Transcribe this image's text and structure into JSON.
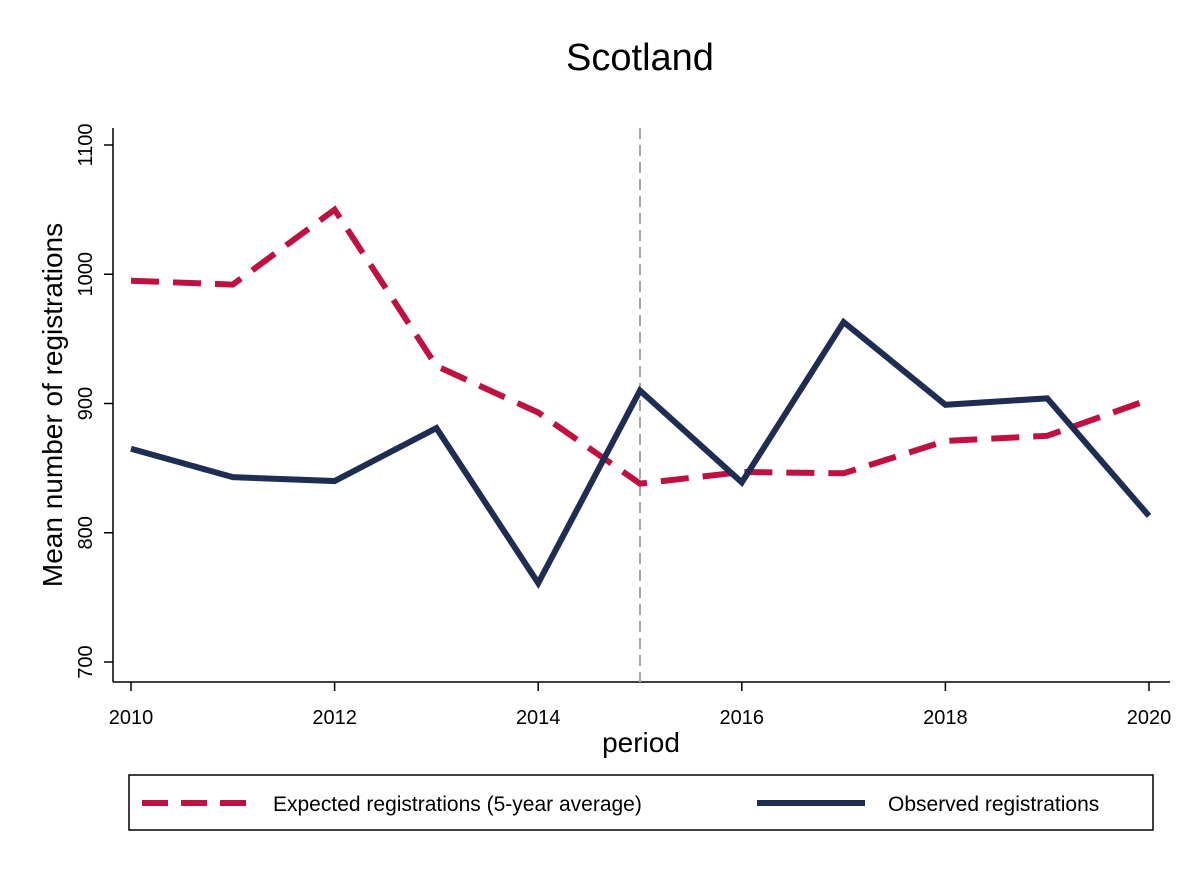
{
  "chart_data": {
    "type": "line",
    "title": "Scotland",
    "xlabel": "period",
    "ylabel": "Mean number of registrations",
    "x": [
      2010,
      2011,
      2012,
      2013,
      2014,
      2015,
      2016,
      2017,
      2018,
      2019,
      2020
    ],
    "xlim": [
      2010,
      2020
    ],
    "ylim": [
      700,
      1100
    ],
    "xticks": [
      2010,
      2012,
      2014,
      2016,
      2018,
      2020
    ],
    "yticks": [
      700,
      800,
      900,
      1000,
      1100
    ],
    "xtick_labels": [
      "2010",
      "2012",
      "2014",
      "2016",
      "2018",
      "2020"
    ],
    "ytick_labels": [
      "700",
      "800",
      "900",
      "1000",
      "1100"
    ],
    "reference_line_x": 2015,
    "grid": false,
    "legend_position": "bottom",
    "series": [
      {
        "name": "Expected registrations (5-year average)",
        "color": "#c0103f",
        "style": "dashed",
        "values": [
          995,
          992,
          1050,
          929,
          893,
          838,
          847,
          846,
          871,
          875,
          903
        ]
      },
      {
        "name": "Observed registrations",
        "color": "#1f2d52",
        "style": "solid",
        "values": [
          865,
          843,
          840,
          881,
          761,
          910,
          839,
          963,
          899,
          904,
          813
        ]
      }
    ]
  }
}
